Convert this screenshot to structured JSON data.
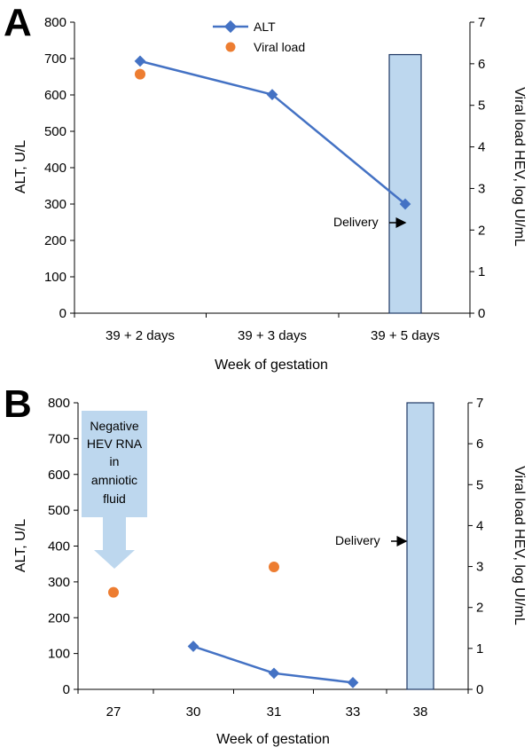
{
  "chart_data": [
    {
      "panel": "A",
      "type": "line",
      "categories": [
        "39 + 2 days",
        "39 + 3 days",
        "39 + 5 days"
      ],
      "series": [
        {
          "name": "ALT",
          "axis": "left",
          "values": [
            693,
            601,
            300
          ]
        },
        {
          "name": "Viral load",
          "axis": "right",
          "mark": "scatter",
          "values": [
            5.75,
            null,
            null
          ]
        }
      ],
      "delivery_bar": {
        "category_index": 2,
        "value": 6.22
      },
      "annotations": [
        {
          "text": "Delivery",
          "arrow": "right"
        }
      ],
      "xlabel": "Week of gestation",
      "ylabel": "ALT, U/L",
      "y2label": "Viral load HEV, log UI/mL",
      "ylim": [
        0,
        800
      ],
      "yticks": [
        0,
        100,
        200,
        300,
        400,
        500,
        600,
        700,
        800
      ],
      "y2lim": [
        0,
        7
      ],
      "y2ticks": [
        0,
        1,
        2,
        3,
        4,
        5,
        6,
        7
      ],
      "legend": "top-center",
      "grid": false
    },
    {
      "panel": "B",
      "type": "line",
      "categories": [
        "27",
        "30",
        "31",
        "33",
        "38"
      ],
      "series": [
        {
          "name": "ALT",
          "axis": "left",
          "values": [
            null,
            120,
            45,
            19,
            null
          ]
        },
        {
          "name": "Viral load",
          "axis": "right",
          "mark": "scatter",
          "values": [
            2.37,
            null,
            2.99,
            null,
            null
          ]
        }
      ],
      "delivery_bar": {
        "category_index": 4,
        "value": 7
      },
      "annotations": [
        {
          "text": "Delivery",
          "arrow": "right"
        },
        {
          "lines": [
            "Negative",
            "HEV RNA",
            "in",
            "amniotic",
            "fluid"
          ],
          "arrow": "down"
        }
      ],
      "xlabel": "Week of gestation",
      "ylabel": "ALT, U/L",
      "y2label": "Viral load HEV, log UI/mL",
      "ylim": [
        0,
        800
      ],
      "yticks": [
        0,
        100,
        200,
        300,
        400,
        500,
        600,
        700,
        800
      ],
      "y2lim": [
        0,
        7
      ],
      "y2ticks": [
        0,
        1,
        2,
        3,
        4,
        5,
        6,
        7
      ],
      "grid": false
    }
  ],
  "colors": {
    "alt": "#4472C4",
    "viral_load": "#ED7D31",
    "bar_fill": "#BDD7EE",
    "bar_stroke": "#1F3864",
    "annotation_box": "#BDD7EE"
  },
  "legend_labels": [
    "ALT",
    "Viral load"
  ]
}
